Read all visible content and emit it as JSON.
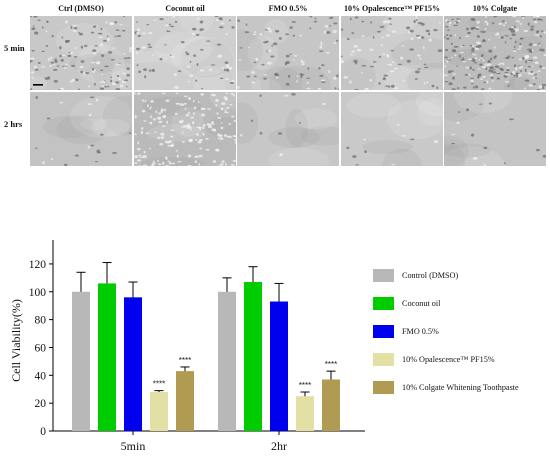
{
  "micrographs": {
    "columns": [
      "Ctrl (DMSO)",
      "Coconut oil",
      "FMO 0.5%",
      "10% Opalescence™ PF15%",
      "10% Colgate"
    ],
    "rows": [
      "5 min",
      "2 hrs"
    ]
  },
  "chart_data": {
    "type": "bar",
    "ylabel": "Cell Viability(%)",
    "xlabel": "",
    "ylim": [
      0,
      130
    ],
    "yticks": [
      0,
      20,
      40,
      60,
      80,
      100,
      120
    ],
    "categories": [
      "5min",
      "2hr"
    ],
    "legend_position": "right",
    "series": [
      {
        "name": "Control (DMSO)",
        "color": "#b8b8b8",
        "values": [
          100,
          100
        ],
        "errors": [
          14,
          10
        ],
        "annotations": [
          "",
          ""
        ]
      },
      {
        "name": "Coconut oil",
        "color": "#00cc00",
        "values": [
          106,
          107
        ],
        "errors": [
          15,
          11
        ],
        "annotations": [
          "",
          ""
        ]
      },
      {
        "name": "FMO 0.5%",
        "color": "#0000ee",
        "values": [
          96,
          93
        ],
        "errors": [
          11,
          13
        ],
        "annotations": [
          "",
          ""
        ]
      },
      {
        "name": "10% Opalescence™ PF15%",
        "color": "#e3e0a6",
        "values": [
          28,
          25
        ],
        "errors": [
          1,
          3
        ],
        "annotations": [
          "****",
          "****"
        ]
      },
      {
        "name": "10% Colgate Whitening Toothpaste",
        "color": "#b19b52",
        "values": [
          43,
          37
        ],
        "errors": [
          3,
          6
        ],
        "annotations": [
          "****",
          "****"
        ]
      }
    ]
  }
}
